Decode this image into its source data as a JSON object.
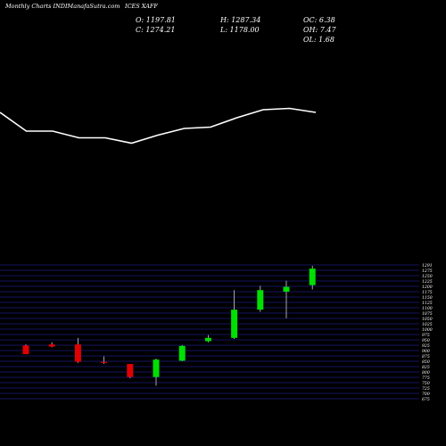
{
  "header": {
    "site": "Monthly Charts INDIManafaSutra.com",
    "symbol": "ICES XAFF"
  },
  "ohlc": {
    "open": "O: 1197.81",
    "high": "H: 1287.34",
    "close": "C: 1274.21",
    "low": "L: 1178.00",
    "oc": "OC: 6.38",
    "oh": "OH: 7.47",
    "ol": "OL: 1.68"
  },
  "colors": {
    "background": "#000000",
    "up": "#00e000",
    "down": "#e00000",
    "line": "#ffffff",
    "grid": "#1a1a80",
    "text": "#ffffff"
  },
  "chart_data": {
    "type": "candlestick",
    "ylim": [
      675,
      1291
    ],
    "tick_labels": [
      "1291",
      "1275",
      "1250",
      "1225",
      "1200",
      "1175",
      "1150",
      "1125",
      "1100",
      "1075",
      "1050",
      "1025",
      "1000",
      "975",
      "950",
      "925",
      "900",
      "875",
      "850",
      "825",
      "800",
      "775",
      "750",
      "725",
      "700",
      "675"
    ],
    "candles": [
      {
        "open": 920,
        "close": 880,
        "high": 925,
        "low": 880
      },
      {
        "open": 925,
        "close": 915,
        "high": 935,
        "low": 912
      },
      {
        "open": 925,
        "close": 845,
        "high": 955,
        "low": 840
      },
      {
        "open": 845,
        "close": 840,
        "high": 870,
        "low": 835
      },
      {
        "open": 835,
        "close": 775,
        "high": 835,
        "low": 770
      },
      {
        "open": 775,
        "close": 855,
        "high": 860,
        "low": 735
      },
      {
        "open": 850,
        "close": 918,
        "high": 922,
        "low": 848
      },
      {
        "open": 940,
        "close": 955,
        "high": 968,
        "low": 935
      },
      {
        "open": 955,
        "close": 1085,
        "high": 1175,
        "low": 950
      },
      {
        "open": 1085,
        "close": 1175,
        "high": 1195,
        "low": 1075
      },
      {
        "open": 1168,
        "close": 1190,
        "high": 1218,
        "low": 1045
      },
      {
        "open": 1198,
        "close": 1274,
        "high": 1287,
        "low": 1178
      }
    ],
    "line_series": [
      0.0,
      0.14,
      0.14,
      0.19,
      0.19,
      0.23,
      0.17,
      0.12,
      0.11,
      0.04,
      -0.02,
      -0.03,
      0.0
    ]
  }
}
